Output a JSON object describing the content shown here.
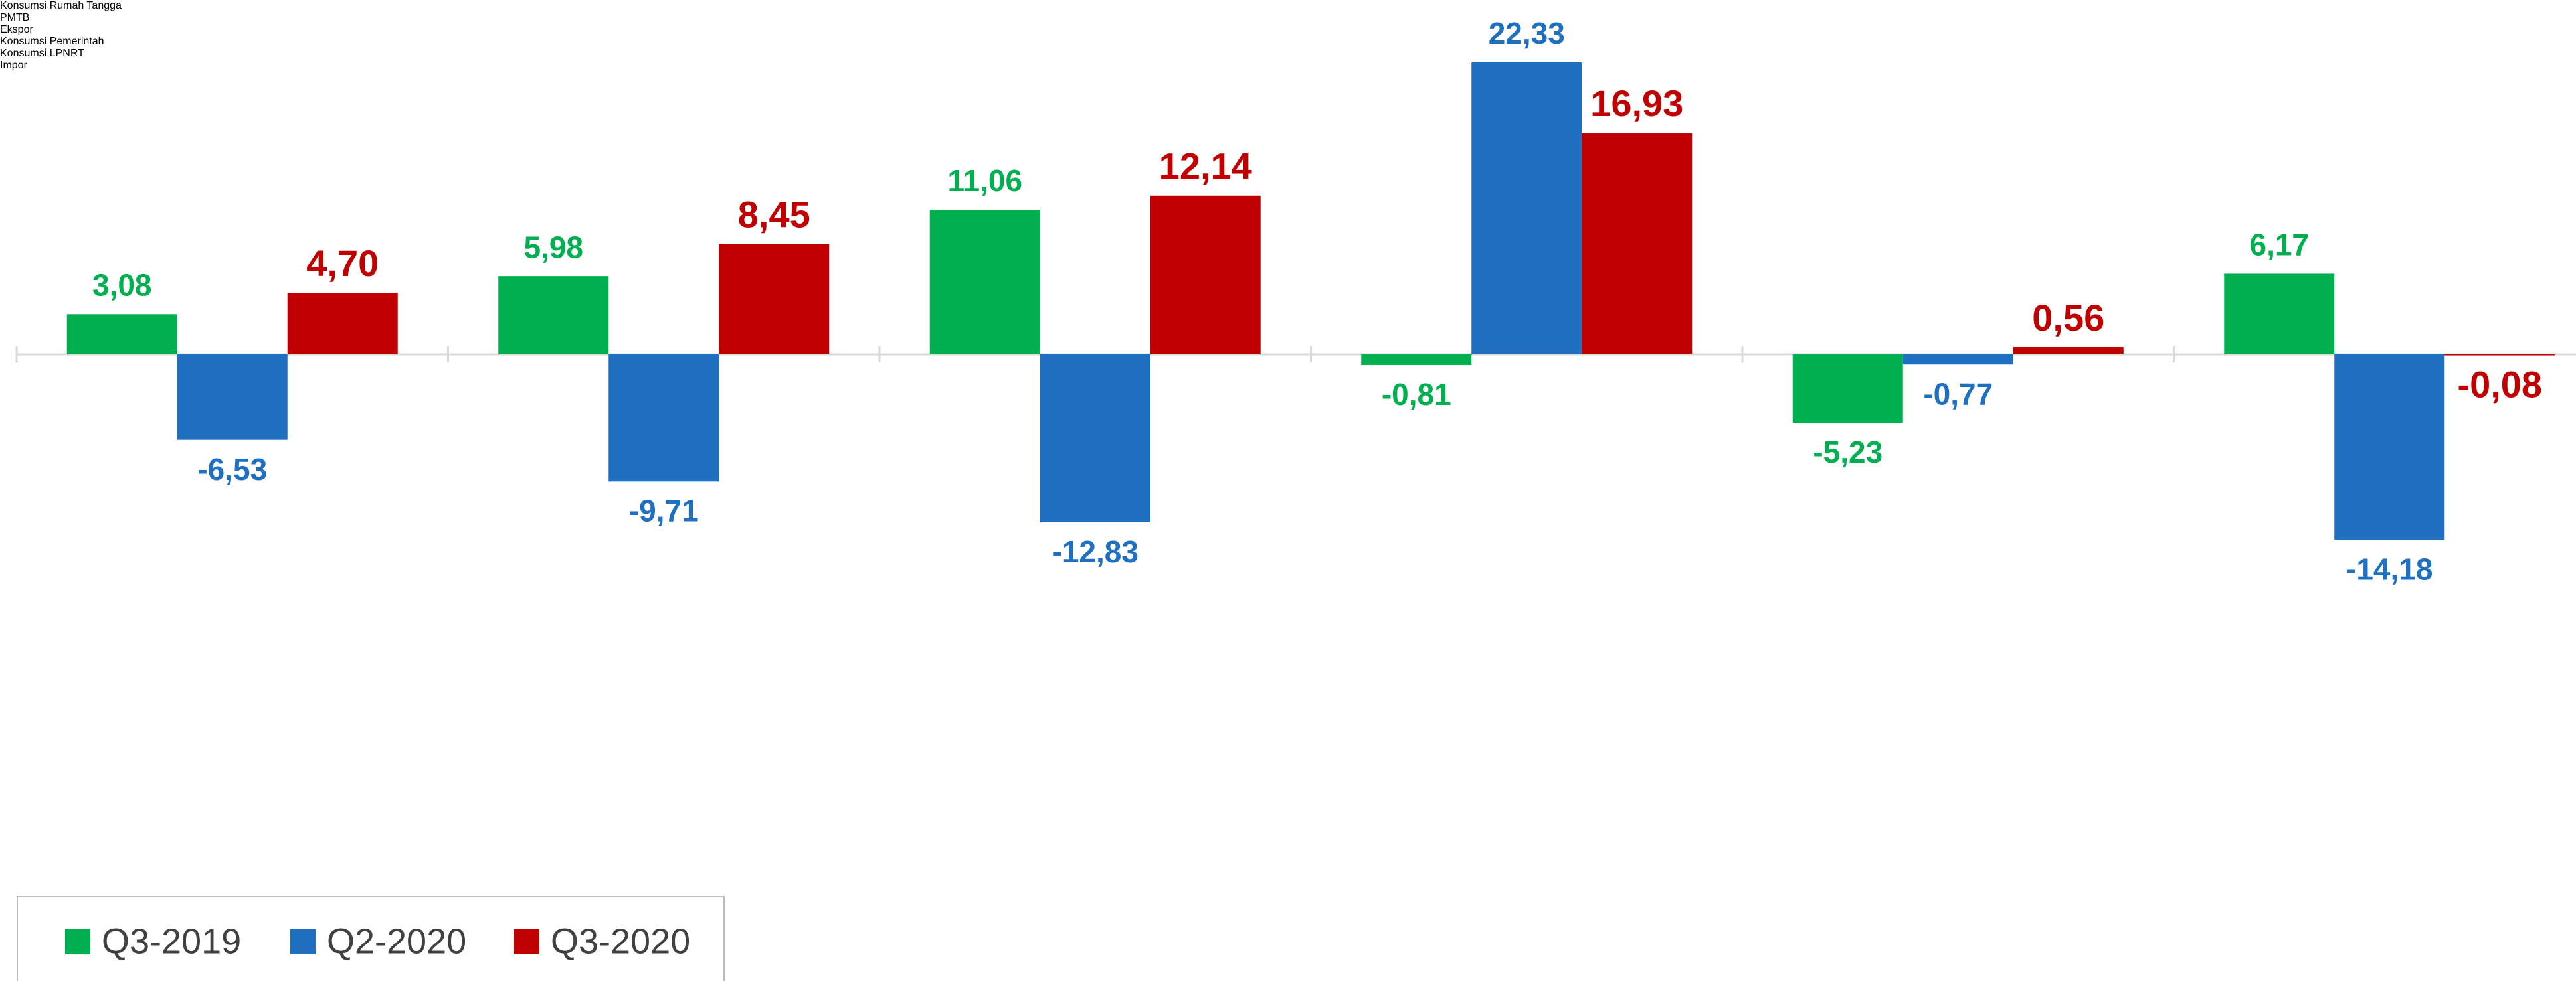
{
  "chart_data": {
    "type": "bar",
    "categories": [
      "Konsumsi\nRumah Tangga",
      "PMTB",
      "Ekspor",
      "Konsumsi Pemerintah",
      "Konsumsi LPNRT",
      "Impor"
    ],
    "series": [
      {
        "name": "Q3-2019",
        "color": "#00b050",
        "values": [
          3.08,
          5.98,
          11.06,
          -0.81,
          -5.23,
          6.17
        ],
        "value_labels": [
          "3,08",
          "5,98",
          "11,06",
          "-0,81",
          "-5,23",
          "6,17"
        ]
      },
      {
        "name": "Q2-2020",
        "color": "#1f70c1",
        "values": [
          -6.53,
          -9.71,
          -12.83,
          22.33,
          -0.77,
          -14.18
        ],
        "value_labels": [
          "-6,53",
          "-9,71",
          "-12,83",
          "22,33",
          "-0,77",
          "-14,18"
        ]
      },
      {
        "name": "Q3-2020",
        "color": "#c00000",
        "values": [
          4.7,
          8.45,
          12.14,
          16.93,
          0.56,
          -0.08
        ],
        "value_labels": [
          "4,70",
          "8,45",
          "12,14",
          "16,93",
          "0,56",
          "-0,08"
        ]
      }
    ],
    "legend": "bottom-left"
  }
}
